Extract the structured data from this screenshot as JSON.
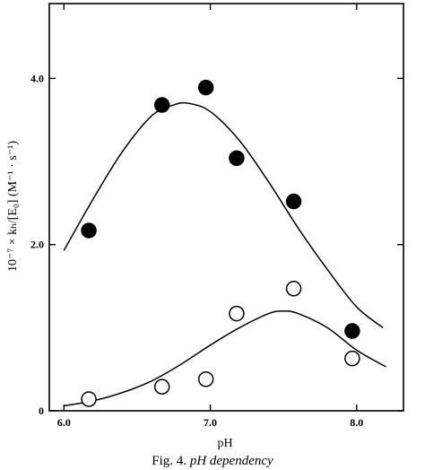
{
  "chart_data": {
    "type": "scatter",
    "title": "",
    "caption": {
      "fig": "Fig. 4.",
      "text": "pH dependency"
    },
    "xlabel": "pH",
    "ylabel": "10⁻⁷ × kₕ/[E₀] (M⁻¹ · s⁻¹)",
    "xlim": [
      5.9,
      8.32
    ],
    "ylim": [
      0,
      4.9
    ],
    "x_ticks": [
      "6.0",
      "7.0",
      "8.0"
    ],
    "y_ticks": [
      "0",
      "2.0",
      "4.0"
    ],
    "x_tick_values": [
      6.0,
      7.0,
      8.0
    ],
    "y_tick_values": [
      0,
      2.0,
      4.0
    ],
    "grid": false,
    "series": [
      {
        "marker": "filled-circle",
        "points": [
          [
            6.17,
            2.17
          ],
          [
            6.67,
            3.68
          ],
          [
            6.97,
            3.89
          ],
          [
            7.18,
            3.04
          ],
          [
            7.57,
            2.52
          ],
          [
            7.97,
            0.96
          ]
        ],
        "fit_curve": [
          [
            6.0,
            1.93
          ],
          [
            6.2,
            2.55
          ],
          [
            6.4,
            3.12
          ],
          [
            6.6,
            3.55
          ],
          [
            6.75,
            3.68
          ],
          [
            6.85,
            3.7
          ],
          [
            7.0,
            3.6
          ],
          [
            7.2,
            3.25
          ],
          [
            7.4,
            2.75
          ],
          [
            7.6,
            2.2
          ],
          [
            7.8,
            1.7
          ],
          [
            8.0,
            1.25
          ],
          [
            8.18,
            1.0
          ]
        ]
      },
      {
        "marker": "open-circle",
        "points": [
          [
            6.17,
            0.14
          ],
          [
            6.67,
            0.29
          ],
          [
            6.97,
            0.38
          ],
          [
            7.18,
            1.17
          ],
          [
            7.57,
            1.47
          ],
          [
            7.97,
            0.63
          ]
        ],
        "fit_curve": [
          [
            6.0,
            0.06
          ],
          [
            6.2,
            0.12
          ],
          [
            6.4,
            0.22
          ],
          [
            6.6,
            0.36
          ],
          [
            6.8,
            0.56
          ],
          [
            7.0,
            0.79
          ],
          [
            7.2,
            1.0
          ],
          [
            7.4,
            1.17
          ],
          [
            7.5,
            1.2
          ],
          [
            7.6,
            1.17
          ],
          [
            7.8,
            1.0
          ],
          [
            8.0,
            0.73
          ],
          [
            8.2,
            0.53
          ]
        ]
      }
    ]
  }
}
